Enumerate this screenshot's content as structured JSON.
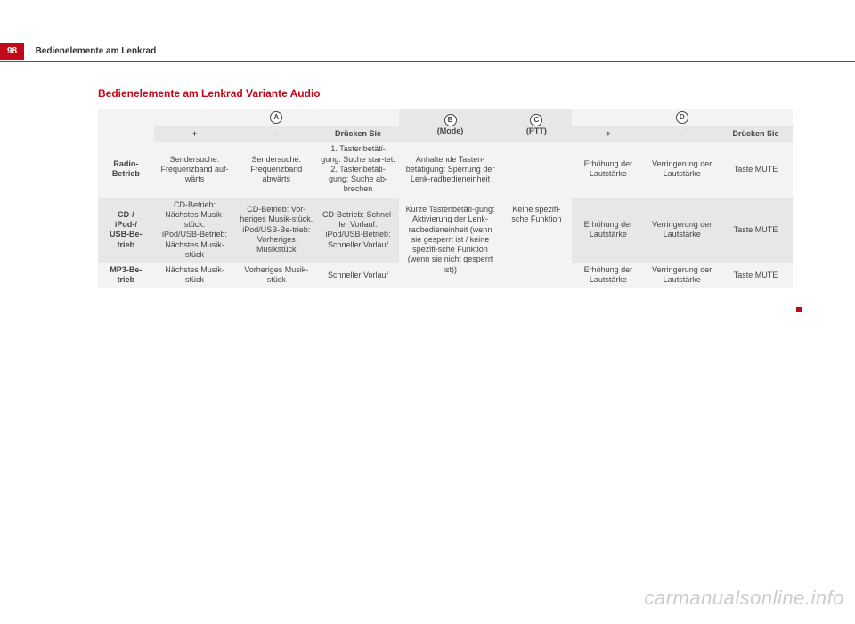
{
  "page": {
    "number": "98",
    "running_title": "Bedienelemente am Lenkrad",
    "section_title": "Bedienelemente am Lenkrad Variante Audio",
    "watermark": "carmanualsonline.info"
  },
  "colors": {
    "brand_red": "#c2091b",
    "text": "#444444",
    "row_light": "#f3f3f3",
    "row_dark": "#e7e7e7",
    "watermark": "#cccccc"
  },
  "table": {
    "group_letters": [
      "A",
      "B",
      "C",
      "D"
    ],
    "group_sub": {
      "B_extra": "(Mode)",
      "C_extra": "(PTT)"
    },
    "sub_headers": {
      "plus": "+",
      "minus": "-",
      "press": "Drücken Sie"
    },
    "row_labels": {
      "radio": "Radio-Betrieb",
      "cd": "CD-/\niPod-/\nUSB-Be-\ntrieb",
      "mp3": "MP3-Be-\ntrieb"
    },
    "cells": {
      "radio": {
        "A_plus": "Sendersuche. Frequenzband auf-wärts",
        "A_minus": "Sendersuche. Frequenzband abwärts",
        "A_press": "1. Tastenbetäti-gung: Suche star-tet.\n2. Tastenbetäti-gung: Suche ab-brechen",
        "D_plus": "Erhöhung der Lautstärke",
        "D_minus": "Verringerung der Lautstärke",
        "D_press": "Taste MUTE"
      },
      "cd": {
        "A_plus": "CD-Betrieb: Nächstes Musik-stück.\niPod/USB-Betrieb: Nächstes Musik-stück",
        "A_minus": "CD-Betrieb: Vor-heriges Musik-stück.\niPod/USB-Be-trieb: Vorheriges Musikstück",
        "A_press": "CD-Betrieb: Schnel-ler Vorlauf.\niPod/USB-Betrieb: Schneller Vorlauf",
        "D_plus": "Erhöhung der Lautstärke",
        "D_minus": "Verringerung der Lautstärke",
        "D_press": "Taste MUTE"
      },
      "mp3": {
        "A_plus": "Nächstes Musik-stück",
        "A_minus": "Vorheriges Musik-stück",
        "A_press": "Schneller Vorlauf",
        "D_plus": "Erhöhung der Lautstärke",
        "D_minus": "Verringerung der Lautstärke",
        "D_press": "Taste MUTE"
      },
      "B_span": "Anhaltende Tasten-betätigung: Sperrung der Lenk-radbedieneinheit\n\nKurze Tastenbetäti-gung:\nAktivierung der Lenk-radbedieneinheit (wenn sie gesperrt ist / keine spezifi-sche Funktion (wenn sie nicht gesperrt ist))",
      "C_span": "Keine spezifi-sche Funktion"
    }
  }
}
